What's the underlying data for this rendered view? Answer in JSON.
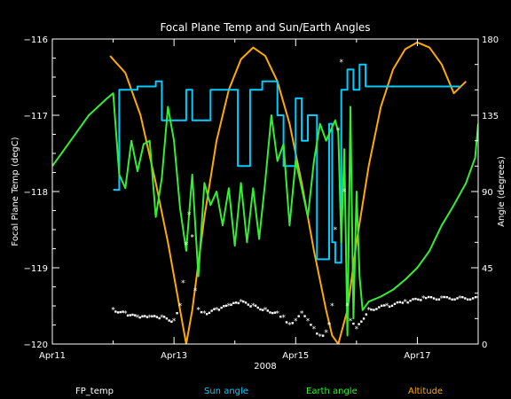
{
  "chart_data": {
    "type": "line",
    "title": "Focal Plane Temp and Sun/Earth Angles",
    "xlabel": "2008",
    "ylabel_left": "Focal Plane Temp (degC)",
    "ylabel_right": "Angle (degrees)",
    "xlim": [
      11,
      18
    ],
    "ylim_left": [
      -120,
      -116
    ],
    "ylim_right": [
      0,
      180
    ],
    "x_ticks": [
      {
        "value": 11,
        "label": "Apr11"
      },
      {
        "value": 13,
        "label": "Apr13"
      },
      {
        "value": 15,
        "label": "Apr15"
      },
      {
        "value": 17,
        "label": "Apr17"
      }
    ],
    "y_left_ticks": [
      {
        "value": -116,
        "label": "−116"
      },
      {
        "value": -117,
        "label": "−117"
      },
      {
        "value": -118,
        "label": "−118"
      },
      {
        "value": -119,
        "label": "−119"
      },
      {
        "value": -120,
        "label": "−120"
      }
    ],
    "y_right_ticks": [
      {
        "value": 0,
        "label": "0"
      },
      {
        "value": 45,
        "label": "45"
      },
      {
        "value": 90,
        "label": "90"
      },
      {
        "value": 135,
        "label": "135"
      },
      {
        "value": 180,
        "label": "180"
      }
    ],
    "series": [
      {
        "name": "FP_temp",
        "axis": "left",
        "color": "#ffffff",
        "style": "points",
        "x": [
          12.0,
          12.2,
          12.4,
          12.6,
          12.8,
          13.0,
          13.1,
          13.15,
          13.2,
          13.25,
          13.3,
          13.35,
          13.4,
          13.5,
          13.7,
          13.9,
          14.1,
          14.3,
          14.5,
          14.7,
          14.8,
          14.9,
          15.0,
          15.1,
          15.2,
          15.3,
          15.4,
          15.5,
          15.55,
          15.6,
          15.65,
          15.7,
          15.75,
          15.8,
          15.85,
          15.9,
          16.0,
          16.2,
          16.5,
          16.8,
          17.1,
          17.4,
          17.7,
          18.0
        ],
        "y": [
          -119.55,
          -119.6,
          -119.65,
          -119.65,
          -119.65,
          -119.7,
          -119.5,
          -119.2,
          -118.7,
          -118.3,
          -118.6,
          -119.3,
          -119.55,
          -119.6,
          -119.55,
          -119.5,
          -119.45,
          -119.5,
          -119.55,
          -119.6,
          -119.65,
          -119.75,
          -119.7,
          -119.6,
          -119.7,
          -119.8,
          -119.9,
          -119.85,
          -119.75,
          -119.5,
          -118.5,
          -117.2,
          -116.3,
          -118.0,
          -119.5,
          -119.7,
          -119.8,
          -119.55,
          -119.5,
          -119.45,
          -119.4,
          -119.4,
          -119.4,
          -119.4
        ]
      },
      {
        "name": "Sun angle",
        "axis": "right",
        "color": "#00ccff",
        "style": "line",
        "x": [
          12.0,
          12.1,
          12.1,
          12.3,
          12.3,
          12.4,
          12.4,
          12.7,
          12.7,
          12.8,
          12.8,
          13.2,
          13.2,
          13.3,
          13.3,
          13.6,
          13.6,
          14.05,
          14.05,
          14.25,
          14.25,
          14.45,
          14.45,
          14.7,
          14.7,
          14.8,
          14.8,
          15.0,
          15.0,
          15.1,
          15.1,
          15.2,
          15.2,
          15.35,
          15.35,
          15.55,
          15.55,
          15.6,
          15.6,
          15.65,
          15.65,
          15.75,
          15.75,
          15.85,
          15.85,
          15.95,
          15.95,
          16.05,
          16.05,
          16.15,
          16.15,
          17.7
        ],
        "y": [
          91,
          91,
          150,
          150,
          150,
          150,
          152,
          152,
          155,
          155,
          132,
          132,
          150,
          150,
          132,
          132,
          150,
          150,
          105,
          105,
          150,
          150,
          155,
          155,
          135,
          135,
          105,
          105,
          145,
          145,
          120,
          120,
          135,
          135,
          50,
          50,
          130,
          130,
          60,
          60,
          48,
          48,
          150,
          150,
          162,
          162,
          150,
          150,
          165,
          165,
          152,
          152
        ]
      },
      {
        "name": "Earth angle",
        "axis": "right",
        "color": "#33ee33",
        "style": "line",
        "x": [
          11.0,
          11.3,
          11.6,
          11.9,
          12.0,
          12.1,
          12.2,
          12.3,
          12.4,
          12.5,
          12.6,
          12.7,
          12.8,
          12.9,
          13.0,
          13.1,
          13.2,
          13.3,
          13.4,
          13.5,
          13.6,
          13.7,
          13.8,
          13.9,
          14.0,
          14.1,
          14.2,
          14.3,
          14.4,
          14.5,
          14.6,
          14.7,
          14.8,
          14.9,
          15.0,
          15.1,
          15.2,
          15.3,
          15.4,
          15.5,
          15.6,
          15.65,
          15.7,
          15.75,
          15.8,
          15.85,
          15.9,
          15.95,
          16.0,
          16.05,
          16.1,
          16.2,
          16.4,
          16.6,
          16.8,
          17.0,
          17.2,
          17.4,
          17.6,
          17.8,
          17.95,
          18.0
        ],
        "y": [
          105,
          120,
          135,
          145,
          148,
          100,
          92,
          120,
          102,
          118,
          120,
          75,
          98,
          140,
          120,
          80,
          55,
          100,
          40,
          95,
          82,
          90,
          70,
          92,
          58,
          95,
          60,
          92,
          62,
          96,
          135,
          108,
          118,
          70,
          108,
          92,
          75,
          108,
          130,
          120,
          128,
          132,
          125,
          60,
          115,
          5,
          140,
          15,
          90,
          40,
          20,
          25,
          28,
          32,
          38,
          45,
          55,
          70,
          82,
          95,
          110,
          130
        ]
      },
      {
        "name": "Altitude",
        "axis": "right",
        "color": "#ffaa00",
        "style": "line",
        "x": [
          11.95,
          12.2,
          12.45,
          12.7,
          12.9,
          13.1,
          13.2,
          13.3,
          13.5,
          13.7,
          13.9,
          14.1,
          14.3,
          14.5,
          14.7,
          14.9,
          15.1,
          15.3,
          15.5,
          15.6,
          15.7,
          15.85,
          16.0,
          16.2,
          16.4,
          16.6,
          16.8,
          17.0,
          17.2,
          17.4,
          17.6,
          17.8
        ],
        "y": [
          170,
          160,
          135,
          95,
          60,
          20,
          0,
          20,
          75,
          120,
          150,
          168,
          175,
          170,
          155,
          130,
          95,
          55,
          20,
          5,
          0,
          20,
          60,
          105,
          140,
          162,
          174,
          178,
          175,
          165,
          148,
          155
        ]
      }
    ],
    "legend": [
      {
        "label": "FP_temp",
        "color": "#ffffff"
      },
      {
        "label": "Sun angle",
        "color": "#00ccff"
      },
      {
        "label": "Earth angle",
        "color": "#33ee33"
      },
      {
        "label": "Altitude",
        "color": "#ffaa00"
      }
    ],
    "legend_position": "bottom",
    "grid": false
  }
}
